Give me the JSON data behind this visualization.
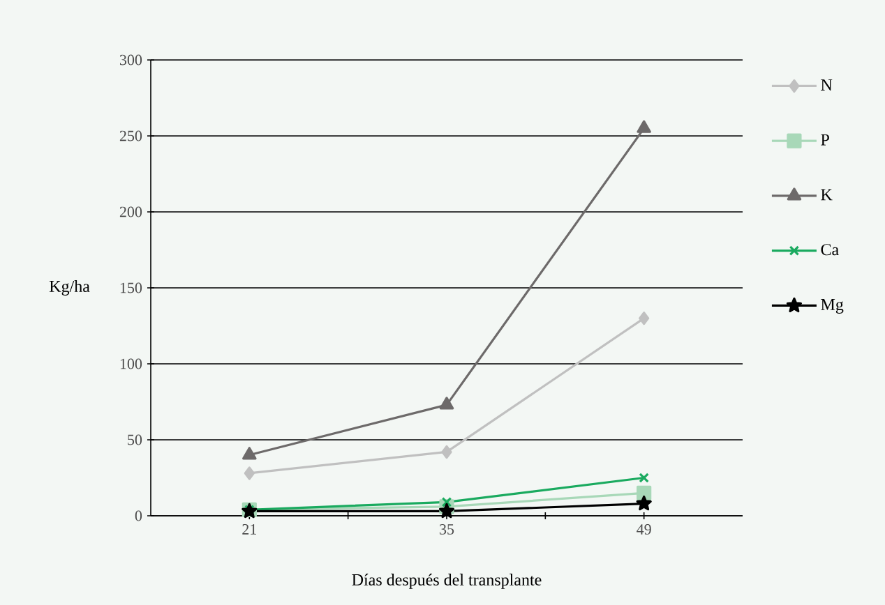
{
  "chart_data": {
    "type": "line",
    "xlabel": "Días después del transplante",
    "ylabel": "Kg/ha",
    "categories": [
      "21",
      "35",
      "49"
    ],
    "series": [
      {
        "name": "N",
        "color": "#c0c0c0",
        "marker": "diamond",
        "values": [
          28,
          42,
          130
        ]
      },
      {
        "name": "P",
        "color": "#a8d8b8",
        "marker": "square",
        "values": [
          4,
          6,
          15
        ]
      },
      {
        "name": "K",
        "color": "#6d6a6a",
        "marker": "triangle",
        "values": [
          40,
          73,
          255
        ]
      },
      {
        "name": "Ca",
        "color": "#1aaa5f",
        "marker": "cross",
        "values": [
          4,
          9,
          25
        ]
      },
      {
        "name": "Mg",
        "color": "#000000",
        "marker": "star",
        "values": [
          3,
          3,
          8
        ]
      }
    ],
    "ylim": [
      0,
      300
    ],
    "yticks": [
      0,
      50,
      100,
      150,
      200,
      250,
      300
    ],
    "grid": "y",
    "legend": "right"
  }
}
